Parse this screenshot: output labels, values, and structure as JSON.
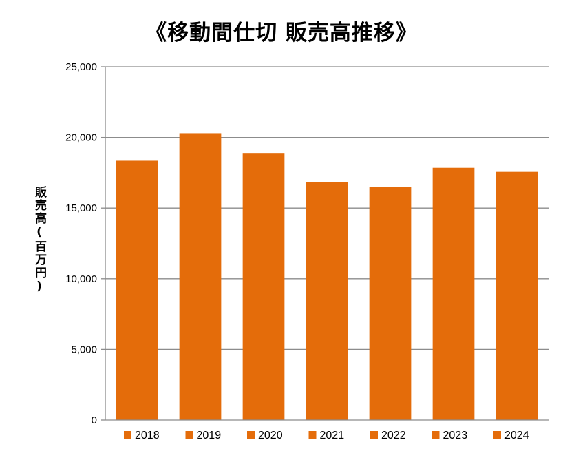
{
  "chart_data": {
    "type": "bar",
    "title": "《移動間仕切 販売高推移》",
    "ylabel": "販売高(百万円)",
    "xlabel": "",
    "categories": [
      "2018",
      "2019",
      "2020",
      "2021",
      "2022",
      "2023",
      "2024"
    ],
    "values": [
      18350,
      20300,
      18900,
      16820,
      16480,
      17850,
      17560
    ],
    "ylim": [
      0,
      25000
    ],
    "yticks": [
      0,
      5000,
      10000,
      15000,
      20000,
      25000
    ],
    "ytick_labels": [
      "0",
      "5,000",
      "10,000",
      "15,000",
      "20,000",
      "25,000"
    ],
    "grid": true,
    "legend_position": "bottom",
    "bar_color": "#E46C0A",
    "grid_color": "#8c8c8c"
  }
}
